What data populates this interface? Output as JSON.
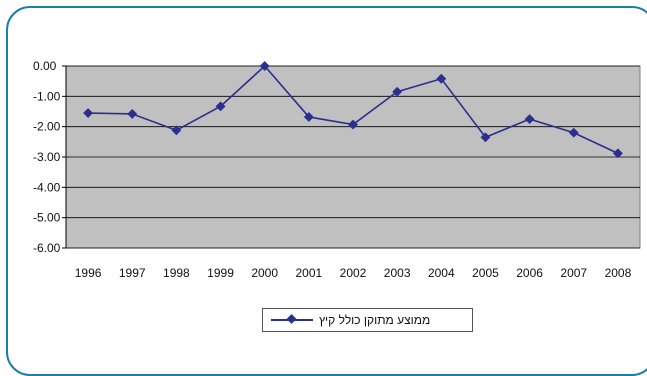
{
  "chart_data": {
    "type": "line",
    "title": "",
    "xlabel": "",
    "ylabel": "",
    "categories": [
      "1996",
      "1997",
      "1998",
      "1999",
      "2000",
      "2001",
      "2002",
      "2003",
      "2004",
      "2005",
      "2006",
      "2007",
      "2008"
    ],
    "series": [
      {
        "name": "ממוצע מתוקן כולל קיץ",
        "values": [
          -1.55,
          -1.58,
          -2.12,
          -1.33,
          0.0,
          -1.68,
          -1.93,
          -0.85,
          -0.42,
          -2.35,
          -1.75,
          -2.2,
          -2.88
        ],
        "color": "#2b2f8f"
      }
    ],
    "ylim": [
      -6,
      0
    ],
    "yticks": [
      "0.00",
      "-1.00",
      "-2.00",
      "-3.00",
      "-4.00",
      "-5.00",
      "-6.00"
    ],
    "grid": true,
    "plot_background": "#c0c0c0",
    "legend_position": "bottom"
  }
}
